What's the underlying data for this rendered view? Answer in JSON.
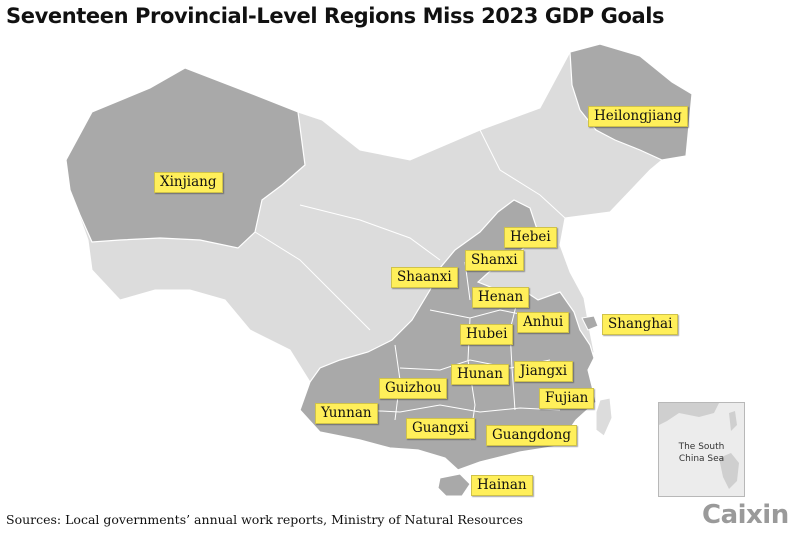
{
  "title": "Seventeen Provincial-Level Regions Miss 2023 GDP Goals",
  "source": "Sources: Local governments’ annual work reports, Ministry of Natural Resources",
  "logo": "Caixin",
  "inset": {
    "label_line1": "The South",
    "label_line2": "China Sea"
  },
  "colors": {
    "highlight_label": "#ffef5a",
    "missed_region": "#a9a9a9",
    "other_region": "#dcdcdc"
  },
  "regions_missed": [
    "Heilongjiang",
    "Xinjiang",
    "Hebei",
    "Shanxi",
    "Shaanxi",
    "Henan",
    "Anhui",
    "Shanghai",
    "Hubei",
    "Hunan",
    "Jiangxi",
    "Guizhou",
    "Fujian",
    "Yunnan",
    "Guangxi",
    "Guangdong",
    "Hainan"
  ]
}
